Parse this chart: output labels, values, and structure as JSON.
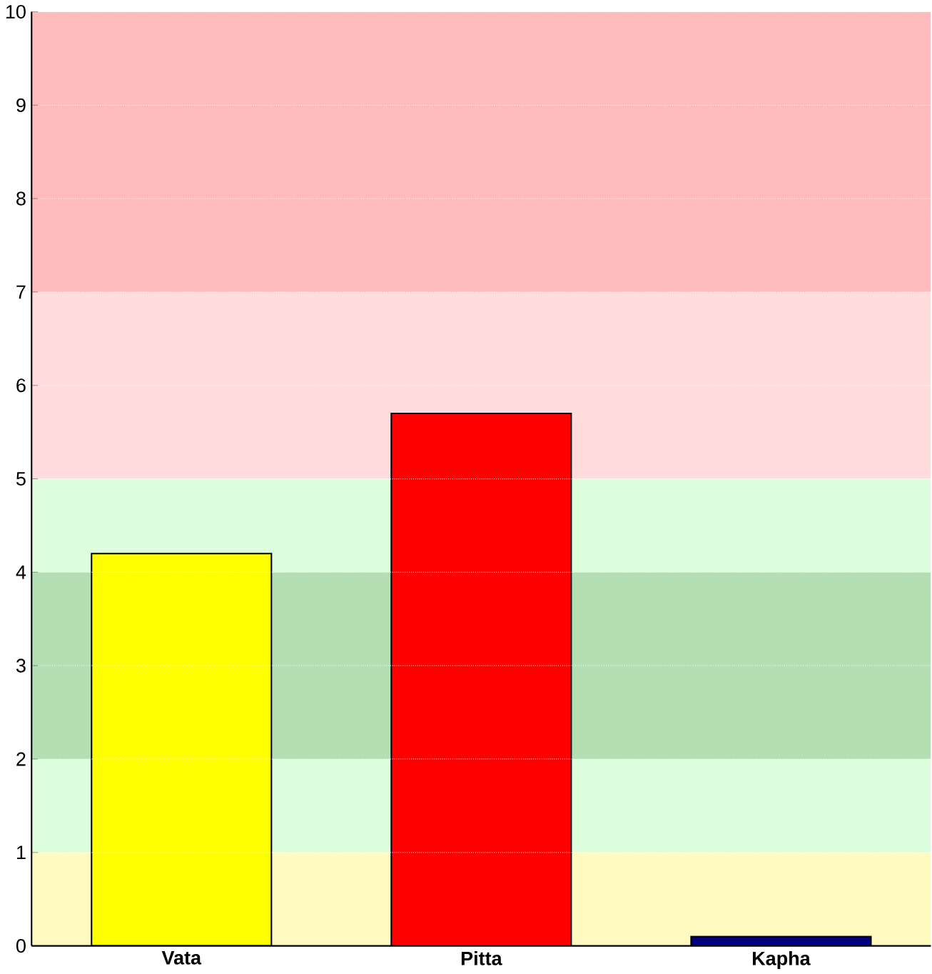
{
  "chart_data": {
    "type": "bar",
    "categories": [
      "Vata",
      "Pitta",
      "Kapha"
    ],
    "values": [
      4.2,
      5.7,
      0.1
    ],
    "colors": [
      "#ffff00",
      "#ff0000",
      "#000080"
    ],
    "ylim": [
      0,
      10
    ],
    "yticks": [
      0,
      1,
      2,
      3,
      4,
      5,
      6,
      7,
      8,
      9,
      10
    ],
    "grid": "y",
    "bands": [
      {
        "axis": "y",
        "from": 0,
        "to": 1,
        "color": "#fffbc0"
      },
      {
        "axis": "y",
        "from": 1,
        "to": 2,
        "color": "#ddfedd"
      },
      {
        "axis": "y",
        "from": 2,
        "to": 4,
        "color": "#b3dfb3"
      },
      {
        "axis": "y",
        "from": 4,
        "to": 5,
        "color": "#ddfedd"
      },
      {
        "axis": "y",
        "from": 5,
        "to": 7,
        "color": "#ffdddd"
      },
      {
        "axis": "y",
        "from": 7,
        "to": 10,
        "color": "#ffbbbb"
      }
    ]
  }
}
